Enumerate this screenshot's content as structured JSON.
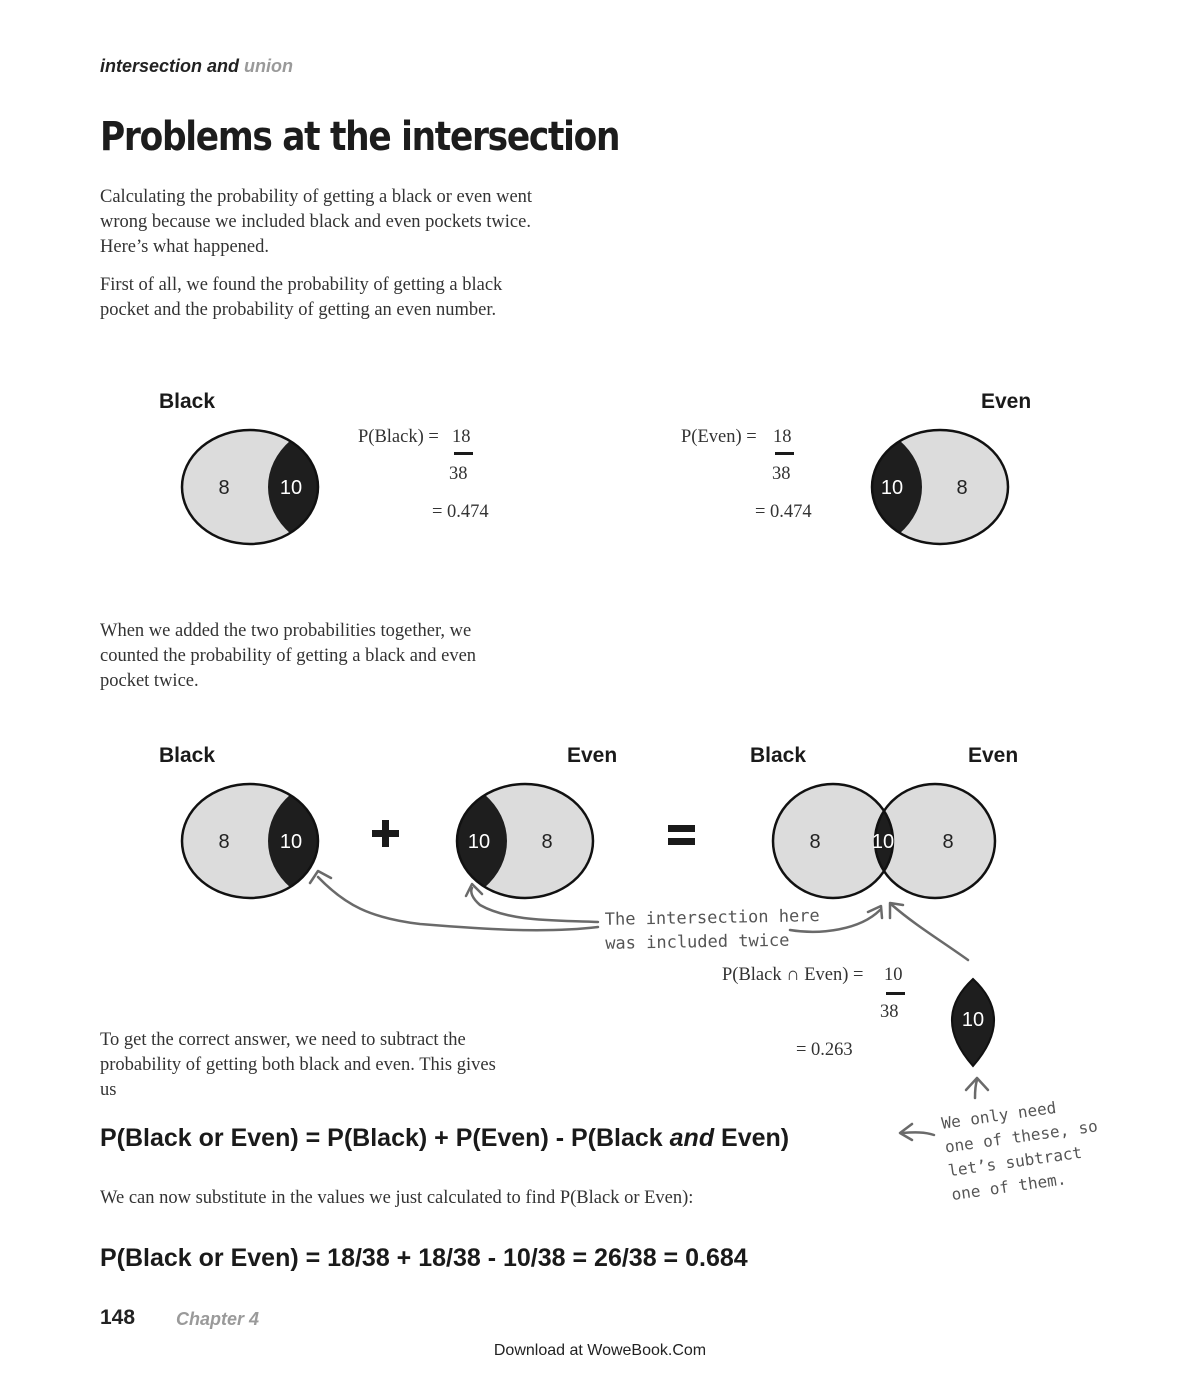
{
  "header": {
    "part1": "intersection and",
    "part2": "union"
  },
  "title": "Problems at the intersection",
  "intro": {
    "p1": [
      "Calculating the probability of getting a black or even went",
      "wrong because we included black and even pockets twice.",
      "Here’s what happened."
    ],
    "p2": [
      "First of all, we found the probability of getting a black",
      "pocket and the probability of getting an even number."
    ]
  },
  "top_diagrams": {
    "black": {
      "label": "Black",
      "only": "8",
      "shared": "10",
      "formula": {
        "lhs": "P(Black) =",
        "num": "18",
        "den": "38",
        "result": "= 0.474"
      }
    },
    "even": {
      "label": "Even",
      "only": "8",
      "shared": "10",
      "formula": {
        "lhs": "P(Even) =",
        "num": "18",
        "den": "38",
        "result": "= 0.474"
      }
    }
  },
  "middle_text": [
    "When we added the two probabilities together, we",
    "counted the probability of getting a black and even",
    "pocket twice."
  ],
  "sum_diagram": {
    "black_label": "Black",
    "even_label": "Even",
    "black_label2": "Black",
    "even_label2": "Even",
    "left_only": "8",
    "left_shared": "10",
    "right_shared": "10",
    "right_only": "8",
    "combo_left": "8",
    "combo_mid": "10",
    "combo_right": "8",
    "plus": "+",
    "equals": "="
  },
  "note_twice": [
    "The intersection here",
    "was included twice"
  ],
  "intersection_formula": {
    "lhs": "P(Black ∩ Even) =",
    "num": "10",
    "den": "38",
    "result": "= 0.263",
    "lens": "10"
  },
  "subtract_text": [
    "To get the correct answer, we need to subtract the",
    "probability of getting both black and even. This gives",
    "us"
  ],
  "equation1": {
    "a": "P(Black or Even) = P(Black) + P(Even) - P(Black ",
    "and": "and",
    "b": " Even)"
  },
  "note_one": [
    "We only need",
    "one of these, so",
    "let’s subtract",
    "one of them."
  ],
  "substitute_text": "We can now substitute in the values we just calculated to find P(Black or Even):",
  "equation2": "P(Black or Even) = 18/38 + 18/38 - 10/38 = 26/38 = 0.684",
  "footer": {
    "page": "148",
    "chapter": "Chapter 4",
    "download": "Download at WoweBook.Com"
  }
}
